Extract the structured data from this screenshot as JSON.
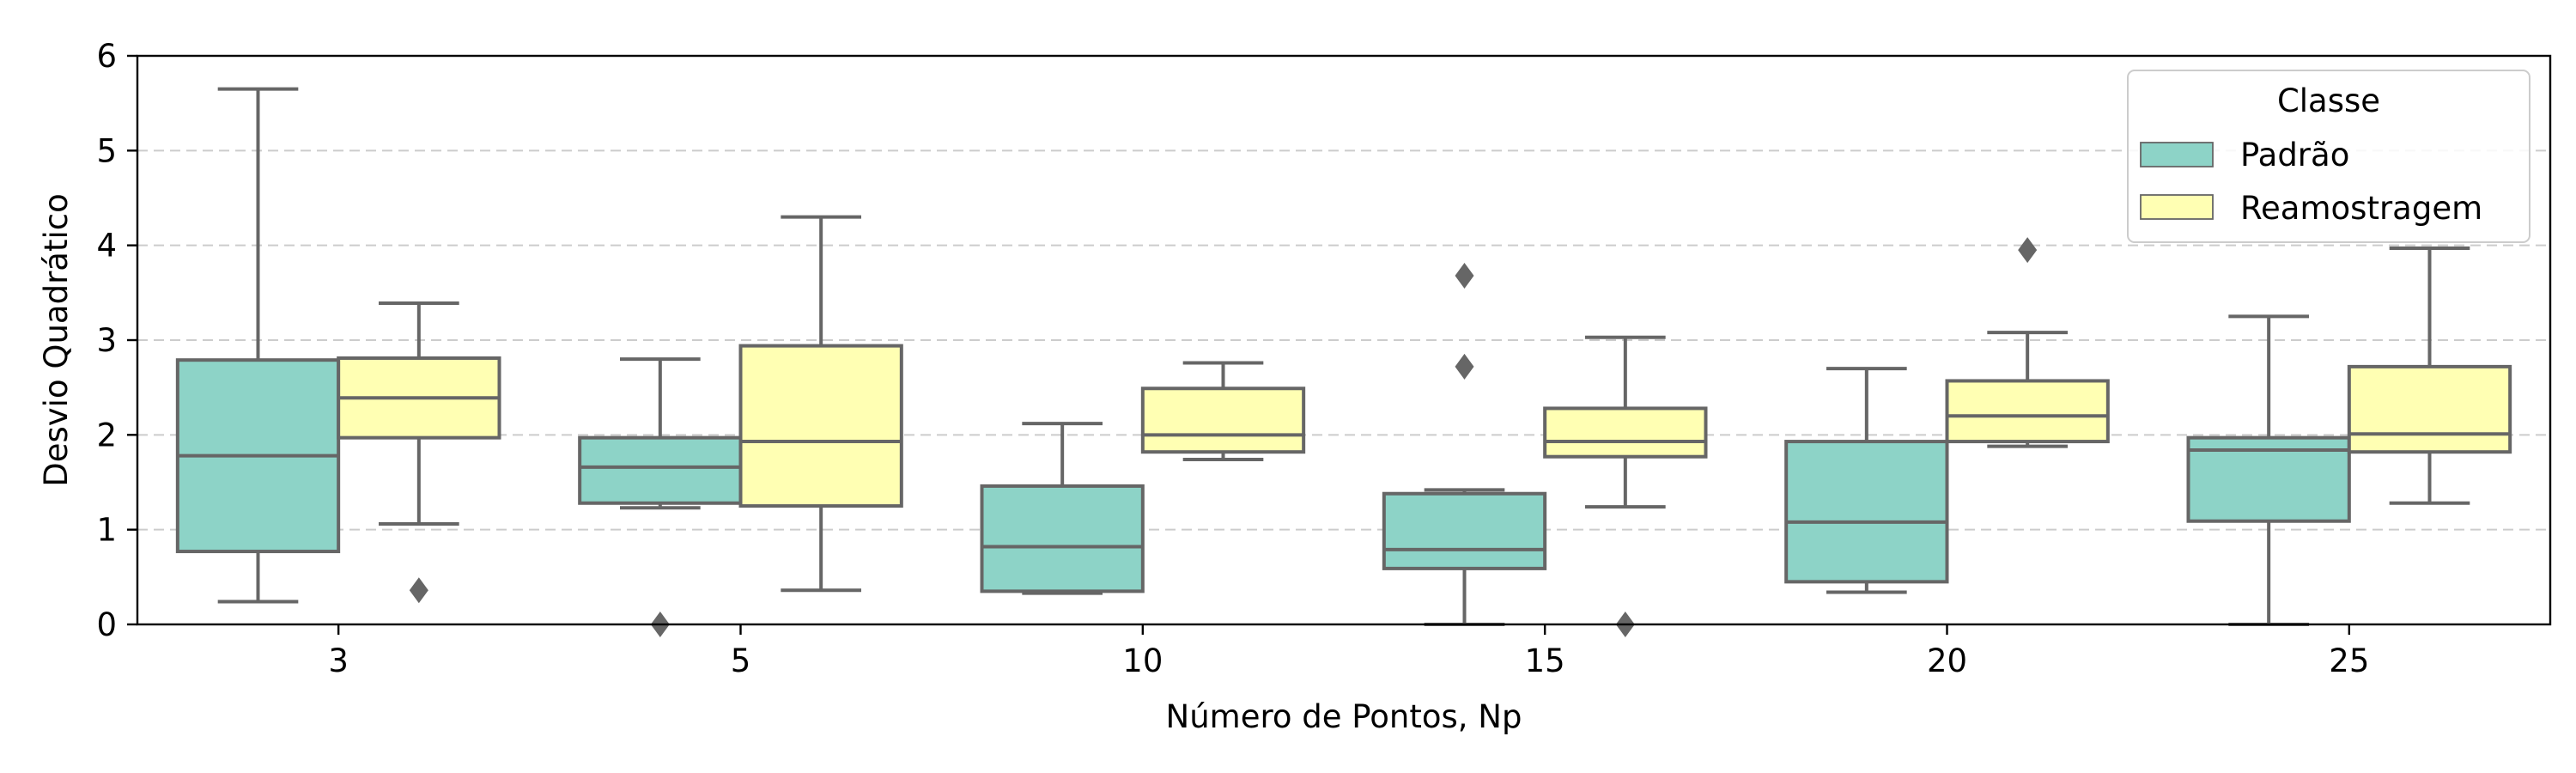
{
  "chart_data": {
    "type": "box",
    "xlabel": "Número de Pontos, Np",
    "ylabel": "Desvio Quadrático",
    "ylim": [
      0,
      6
    ],
    "yticks": [
      0,
      1,
      2,
      3,
      4,
      5,
      6
    ],
    "grid": "horizontal-dashed",
    "categories": [
      "3",
      "5",
      "10",
      "15",
      "20",
      "25"
    ],
    "legend": {
      "title": "Classe",
      "position": "top-right"
    },
    "series": [
      {
        "name": "Padrão",
        "color": "#8dd3c7",
        "boxes": [
          {
            "whislo": 0.24,
            "q1": 0.77,
            "med": 1.78,
            "q3": 2.79,
            "whishi": 5.65,
            "fliers": []
          },
          {
            "whislo": 1.23,
            "q1": 1.28,
            "med": 1.66,
            "q3": 1.97,
            "whishi": 2.8,
            "fliers": [
              0.0
            ]
          },
          {
            "whislo": 0.33,
            "q1": 0.35,
            "med": 0.82,
            "q3": 1.46,
            "whishi": 2.12,
            "fliers": []
          },
          {
            "whislo": 0.0,
            "q1": 0.59,
            "med": 0.79,
            "q3": 1.38,
            "whishi": 1.42,
            "fliers": [
              3.68,
              2.72
            ]
          },
          {
            "whislo": 0.34,
            "q1": 0.45,
            "med": 1.08,
            "q3": 1.93,
            "whishi": 2.7,
            "fliers": []
          },
          {
            "whislo": 0.0,
            "q1": 1.09,
            "med": 1.84,
            "q3": 1.97,
            "whishi": 3.25,
            "fliers": []
          }
        ]
      },
      {
        "name": "Reamostragem",
        "color": "#ffffb3",
        "boxes": [
          {
            "whislo": 1.06,
            "q1": 1.97,
            "med": 2.39,
            "q3": 2.81,
            "whishi": 3.39,
            "fliers": [
              0.36
            ]
          },
          {
            "whislo": 0.36,
            "q1": 1.25,
            "med": 1.93,
            "q3": 2.94,
            "whishi": 4.3,
            "fliers": []
          },
          {
            "whislo": 1.74,
            "q1": 1.82,
            "med": 2.0,
            "q3": 2.49,
            "whishi": 2.76,
            "fliers": []
          },
          {
            "whislo": 1.24,
            "q1": 1.77,
            "med": 1.93,
            "q3": 2.28,
            "whishi": 3.03,
            "fliers": [
              0.0
            ]
          },
          {
            "whislo": 1.88,
            "q1": 1.93,
            "med": 2.2,
            "q3": 2.57,
            "whishi": 3.08,
            "fliers": [
              3.95
            ]
          },
          {
            "whislo": 1.28,
            "q1": 1.82,
            "med": 2.01,
            "q3": 2.72,
            "whishi": 3.97,
            "fliers": []
          }
        ]
      }
    ]
  }
}
